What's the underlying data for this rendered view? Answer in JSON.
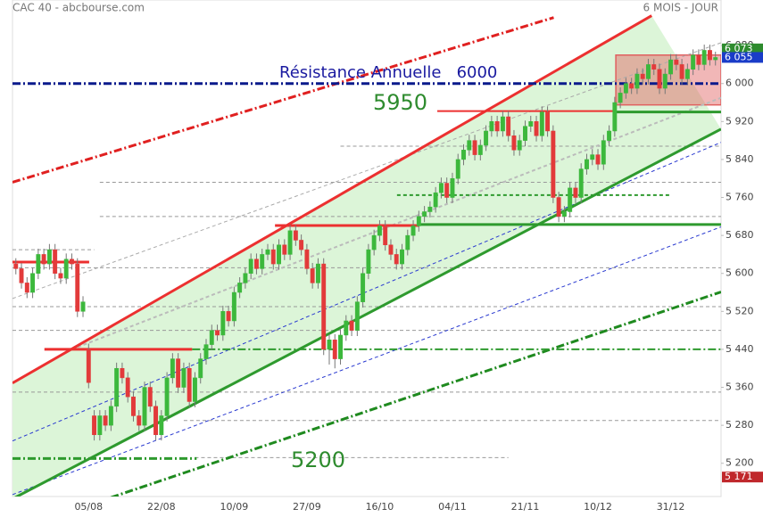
{
  "chart_data": {
    "type": "candlestick",
    "title": "CAC 40 - abcbourse.com",
    "subtitle": "6 MOIS - JOUR",
    "categories": [
      null,
      null,
      null,
      null,
      null,
      null,
      null,
      null,
      null,
      null,
      null,
      null,
      null,
      "05/08",
      null,
      null,
      null,
      null,
      null,
      null,
      null,
      null,
      null,
      null,
      null,
      null,
      "22/08",
      null,
      null,
      null,
      null,
      null,
      null,
      null,
      null,
      null,
      null,
      null,
      null,
      "10/09",
      null,
      null,
      null,
      null,
      null,
      null,
      null,
      null,
      null,
      null,
      null,
      null,
      "27/09",
      null,
      null,
      null,
      null,
      null,
      null,
      null,
      null,
      null,
      null,
      null,
      null,
      "16/10",
      null,
      null,
      null,
      null,
      null,
      null,
      null,
      null,
      null,
      null,
      null,
      null,
      "04/11",
      null,
      null,
      null,
      null,
      null,
      null,
      null,
      null,
      null,
      null,
      null,
      null,
      "21/11",
      null,
      null,
      null,
      null,
      null,
      null,
      null,
      null,
      null,
      null,
      null,
      null,
      "10/12",
      null,
      null,
      null,
      null,
      null,
      null,
      null,
      null,
      null,
      null,
      null,
      null,
      "31/12",
      null,
      null,
      null,
      null,
      null,
      null,
      null,
      null
    ],
    "ohlc": [
      [
        5620,
        5632,
        5598,
        5610
      ],
      [
        5610,
        5622,
        5568,
        5580
      ],
      [
        5580,
        5592,
        5548,
        5560
      ],
      [
        5560,
        5612,
        5548,
        5600
      ],
      [
        5600,
        5652,
        5588,
        5640
      ],
      [
        5640,
        5652,
        5608,
        5620
      ],
      [
        5620,
        5662,
        5608,
        5650
      ],
      [
        5650,
        5662,
        5588,
        5600
      ],
      [
        5600,
        5612,
        5578,
        5590
      ],
      [
        5590,
        5642,
        5578,
        5630
      ],
      [
        5630,
        5642,
        5608,
        5620
      ],
      [
        5620,
        5632,
        5508,
        5520
      ],
      [
        5520,
        5552,
        5508,
        5540
      ],
      [
        5440,
        5452,
        5358,
        5370
      ],
      [
        5300,
        5312,
        5248,
        5260
      ],
      [
        5260,
        5312,
        5248,
        5300
      ],
      [
        5300,
        5312,
        5268,
        5280
      ],
      [
        5280,
        5332,
        5268,
        5320
      ],
      [
        5320,
        5412,
        5308,
        5400
      ],
      [
        5400,
        5412,
        5368,
        5380
      ],
      [
        5380,
        5392,
        5328,
        5340
      ],
      [
        5340,
        5352,
        5288,
        5300
      ],
      [
        5300,
        5312,
        5268,
        5280
      ],
      [
        5280,
        5372,
        5268,
        5360
      ],
      [
        5360,
        5372,
        5308,
        5320
      ],
      [
        5320,
        5332,
        5248,
        5260
      ],
      [
        5260,
        5312,
        5248,
        5300
      ],
      [
        5300,
        5392,
        5288,
        5380
      ],
      [
        5380,
        5432,
        5368,
        5420
      ],
      [
        5420,
        5432,
        5348,
        5360
      ],
      [
        5360,
        5412,
        5348,
        5400
      ],
      [
        5400,
        5412,
        5318,
        5330
      ],
      [
        5330,
        5392,
        5318,
        5380
      ],
      [
        5380,
        5432,
        5368,
        5420
      ],
      [
        5420,
        5462,
        5408,
        5450
      ],
      [
        5450,
        5492,
        5438,
        5480
      ],
      [
        5480,
        5492,
        5458,
        5470
      ],
      [
        5470,
        5532,
        5458,
        5520
      ],
      [
        5520,
        5532,
        5488,
        5500
      ],
      [
        5500,
        5572,
        5488,
        5560
      ],
      [
        5560,
        5592,
        5548,
        5580
      ],
      [
        5580,
        5612,
        5568,
        5600
      ],
      [
        5600,
        5642,
        5588,
        5630
      ],
      [
        5630,
        5642,
        5598,
        5610
      ],
      [
        5610,
        5652,
        5598,
        5640
      ],
      [
        5640,
        5662,
        5628,
        5650
      ],
      [
        5650,
        5662,
        5608,
        5620
      ],
      [
        5620,
        5672,
        5608,
        5660
      ],
      [
        5660,
        5672,
        5628,
        5640
      ],
      [
        5640,
        5702,
        5628,
        5690
      ],
      [
        5690,
        5702,
        5658,
        5670
      ],
      [
        5670,
        5682,
        5638,
        5650
      ],
      [
        5650,
        5662,
        5598,
        5610
      ],
      [
        5610,
        5622,
        5568,
        5580
      ],
      [
        5580,
        5632,
        5568,
        5620
      ],
      [
        5620,
        5632,
        5428,
        5440
      ],
      [
        5440,
        5472,
        5408,
        5460
      ],
      [
        5460,
        5472,
        5400,
        5420
      ],
      [
        5420,
        5482,
        5408,
        5470
      ],
      [
        5470,
        5512,
        5458,
        5500
      ],
      [
        5500,
        5512,
        5468,
        5480
      ],
      [
        5480,
        5552,
        5468,
        5540
      ],
      [
        5540,
        5612,
        5528,
        5600
      ],
      [
        5600,
        5662,
        5588,
        5650
      ],
      [
        5650,
        5692,
        5638,
        5680
      ],
      [
        5680,
        5712,
        5668,
        5700
      ],
      [
        5700,
        5712,
        5648,
        5660
      ],
      [
        5660,
        5672,
        5628,
        5640
      ],
      [
        5640,
        5652,
        5608,
        5620
      ],
      [
        5620,
        5662,
        5608,
        5650
      ],
      [
        5650,
        5692,
        5638,
        5680
      ],
      [
        5680,
        5712,
        5668,
        5700
      ],
      [
        5700,
        5732,
        5688,
        5720
      ],
      [
        5720,
        5742,
        5708,
        5730
      ],
      [
        5730,
        5752,
        5718,
        5740
      ],
      [
        5740,
        5782,
        5728,
        5770
      ],
      [
        5770,
        5802,
        5758,
        5790
      ],
      [
        5790,
        5802,
        5748,
        5760
      ],
      [
        5760,
        5812,
        5748,
        5800
      ],
      [
        5800,
        5852,
        5788,
        5840
      ],
      [
        5840,
        5872,
        5828,
        5860
      ],
      [
        5860,
        5892,
        5848,
        5880
      ],
      [
        5880,
        5892,
        5838,
        5850
      ],
      [
        5850,
        5882,
        5838,
        5870
      ],
      [
        5870,
        5912,
        5858,
        5900
      ],
      [
        5900,
        5932,
        5888,
        5920
      ],
      [
        5920,
        5932,
        5888,
        5900
      ],
      [
        5900,
        5942,
        5888,
        5930
      ],
      [
        5930,
        5942,
        5878,
        5890
      ],
      [
        5890,
        5902,
        5848,
        5860
      ],
      [
        5860,
        5892,
        5848,
        5880
      ],
      [
        5880,
        5922,
        5868,
        5910
      ],
      [
        5910,
        5932,
        5898,
        5920
      ],
      [
        5920,
        5932,
        5878,
        5890
      ],
      [
        5890,
        5952,
        5878,
        5940
      ],
      [
        5940,
        5952,
        5888,
        5900
      ],
      [
        5900,
        5912,
        5748,
        5760
      ],
      [
        5760,
        5772,
        5708,
        5720
      ],
      [
        5720,
        5742,
        5708,
        5730
      ],
      [
        5730,
        5792,
        5718,
        5780
      ],
      [
        5780,
        5792,
        5748,
        5760
      ],
      [
        5760,
        5832,
        5748,
        5820
      ],
      [
        5820,
        5852,
        5808,
        5840
      ],
      [
        5840,
        5862,
        5828,
        5850
      ],
      [
        5850,
        5862,
        5818,
        5830
      ],
      [
        5830,
        5892,
        5818,
        5880
      ],
      [
        5880,
        5912,
        5868,
        5900
      ],
      [
        5900,
        5972,
        5888,
        5960
      ],
      [
        5960,
        5992,
        5948,
        5980
      ],
      [
        5980,
        6012,
        5968,
        6000
      ],
      [
        6000,
        6012,
        5978,
        5990
      ],
      [
        5990,
        6032,
        5978,
        6020
      ],
      [
        6020,
        6032,
        5998,
        6010
      ],
      [
        6010,
        6052,
        5998,
        6040
      ],
      [
        6040,
        6052,
        6018,
        6030
      ],
      [
        6030,
        6042,
        5978,
        5990
      ],
      [
        5990,
        6032,
        5978,
        6020
      ],
      [
        6020,
        6062,
        6008,
        6050
      ],
      [
        6050,
        6062,
        6028,
        6040
      ],
      [
        6040,
        6052,
        5998,
        6010
      ],
      [
        6010,
        6042,
        5998,
        6030
      ],
      [
        6030,
        6072,
        6018,
        6060
      ],
      [
        6060,
        6072,
        6028,
        6040
      ],
      [
        6040,
        6082,
        6028,
        6070
      ],
      [
        6070,
        6082,
        6038,
        6050
      ],
      [
        6050,
        6067,
        6038,
        6055
      ]
    ],
    "up_color": "#3cb83c",
    "down_color": "#e23a3a",
    "xlim": [
      -0.6,
      126
    ],
    "ylim": [
      5130,
      6176
    ],
    "yticks": [
      {
        "value": 5200,
        "label": "5 200"
      },
      {
        "value": 5280,
        "label": "5 280"
      },
      {
        "value": 5360,
        "label": "5 360"
      },
      {
        "value": 5440,
        "label": "5 440"
      },
      {
        "value": 5520,
        "label": "5 520"
      },
      {
        "value": 5600,
        "label": "5 600"
      },
      {
        "value": 5680,
        "label": "5 680"
      },
      {
        "value": 5760,
        "label": "5 760"
      },
      {
        "value": 5840,
        "label": "5 840"
      },
      {
        "value": 5920,
        "label": "5 920"
      },
      {
        "value": 6000,
        "label": "6 000"
      },
      {
        "value": 6080,
        "label": "6 080"
      }
    ],
    "channel": {
      "upper": [
        [
          -0.6,
          5369
        ],
        [
          113.6,
          6143
        ]
      ],
      "lower": [
        [
          -0.6,
          5125
        ],
        [
          126,
          5904
        ]
      ],
      "color": "#dcf5d8"
    },
    "zone": {
      "from": 107.2,
      "to": 126,
      "top": 6060,
      "bottom": 5955,
      "color": "#e06060"
    },
    "lines": [
      {
        "from": [
          58,
          5868
        ],
        "to": [
          126,
          5868
        ],
        "color": "#999999",
        "width": 1,
        "style": "dashed"
      },
      {
        "from": [
          15,
          5792
        ],
        "to": [
          126,
          5792
        ],
        "color": "#999999",
        "width": 1,
        "style": "dashed"
      },
      {
        "from": [
          15,
          5720
        ],
        "to": [
          126,
          5720
        ],
        "color": "#999999",
        "width": 1,
        "style": "dashed"
      },
      {
        "from": [
          -0.6,
          5650
        ],
        "to": [
          14,
          5650
        ],
        "color": "#999999",
        "width": 1,
        "style": "dashed"
      },
      {
        "from": [
          -0.6,
          5612
        ],
        "to": [
          126,
          5612
        ],
        "color": "#999999",
        "width": 1,
        "style": "dashed"
      },
      {
        "from": [
          -0.6,
          5530
        ],
        "to": [
          126,
          5530
        ],
        "color": "#999999",
        "width": 1,
        "style": "dashed"
      },
      {
        "from": [
          -0.6,
          5480
        ],
        "to": [
          126,
          5480
        ],
        "color": "#999999",
        "width": 1,
        "style": "dashed"
      },
      {
        "from": [
          -0.6,
          5350
        ],
        "to": [
          126,
          5350
        ],
        "color": "#999999",
        "width": 1,
        "style": "dashed"
      },
      {
        "from": [
          30,
          5290
        ],
        "to": [
          126,
          5290
        ],
        "color": "#999999",
        "width": 1,
        "style": "dashed"
      },
      {
        "from": [
          32,
          5212
        ],
        "to": [
          88,
          5212
        ],
        "color": "#999999",
        "width": 1,
        "style": "dashed"
      },
      {
        "from": [
          -0.6,
          5547
        ],
        "to": [
          126,
          6086
        ],
        "color": "#aaaaaa",
        "width": 1,
        "style": "dashed"
      },
      {
        "from": [
          10,
          5440
        ],
        "to": [
          126,
          5970
        ],
        "color": "#bbbbbb",
        "width": 2,
        "style": "dashed"
      },
      {
        "from": [
          -0.6,
          5247
        ],
        "to": [
          126,
          5876
        ],
        "color": "#2a3ad0",
        "width": 1,
        "style": "dashed"
      },
      {
        "from": [
          -0.6,
          5134
        ],
        "to": [
          126,
          5698
        ],
        "color": "#2a3ad0",
        "width": 1,
        "style": "dashed"
      },
      {
        "from": [
          -0.6,
          5792
        ],
        "to": [
          96.1,
          6139
        ],
        "color": "#e02020",
        "width": 3,
        "style": "dashdot"
      },
      {
        "from": [
          -0.6,
          5369
        ],
        "to": [
          113.6,
          6143
        ],
        "color": "#ec3030",
        "width": 3,
        "style": "solid"
      },
      {
        "from": [
          -0.6,
          5125
        ],
        "to": [
          126,
          5904
        ],
        "color": "#2e9a2e",
        "width": 3,
        "style": "solid"
      },
      {
        "from": [
          6.7,
          5087
        ],
        "to": [
          126,
          5561
        ],
        "color": "#1f8a1f",
        "width": 3,
        "style": "dashdot"
      },
      {
        "from": [
          -0.6,
          6000
        ],
        "to": [
          126,
          6000
        ],
        "color": "#0a1a8c",
        "width": 3,
        "style": "dashdot"
      },
      {
        "from": [
          75.3,
          5942
        ],
        "to": [
          107.2,
          5942
        ],
        "color": "#ec3030",
        "width": 2,
        "style": "solid"
      },
      {
        "from": [
          107.2,
          5940
        ],
        "to": [
          126,
          5940
        ],
        "color": "#2e9a2e",
        "width": 3,
        "style": "solid"
      },
      {
        "from": [
          46.3,
          5701
        ],
        "to": [
          72.1,
          5701
        ],
        "color": "#ec3030",
        "width": 3,
        "style": "solid"
      },
      {
        "from": [
          72.1,
          5703
        ],
        "to": [
          126,
          5703
        ],
        "color": "#2e9a2e",
        "width": 3,
        "style": "solid"
      },
      {
        "from": [
          5.1,
          5440
        ],
        "to": [
          31.5,
          5440
        ],
        "color": "#ec3030",
        "width": 3,
        "style": "solid"
      },
      {
        "from": [
          31.5,
          5440
        ],
        "to": [
          126,
          5440
        ],
        "color": "#2e9a2e",
        "width": 2,
        "style": "dashdot"
      },
      {
        "from": [
          -0.6,
          5624
        ],
        "to": [
          13.1,
          5624
        ],
        "color": "#ec3030",
        "width": 3,
        "style": "solid"
      },
      {
        "from": [
          -0.6,
          5210
        ],
        "to": [
          32.3,
          5210
        ],
        "color": "#2e9a2e",
        "width": 3,
        "style": "dashdot"
      },
      {
        "from": [
          68.1,
          5765
        ],
        "to": [
          116.8,
          5765
        ],
        "color": "#2e9a2e",
        "width": 2,
        "style": "dashed"
      }
    ],
    "price_tags": [
      {
        "value": 6073,
        "label": "6 073",
        "color": "#2e8b2e"
      },
      {
        "value": 6055,
        "label": "6 055",
        "color": "#1a3cc8"
      },
      {
        "value": 5171,
        "label": "5 171",
        "color": "#c0282c"
      }
    ],
    "annotations": [
      "Résistance Annuelle   6000",
      "5950",
      "5200"
    ]
  }
}
